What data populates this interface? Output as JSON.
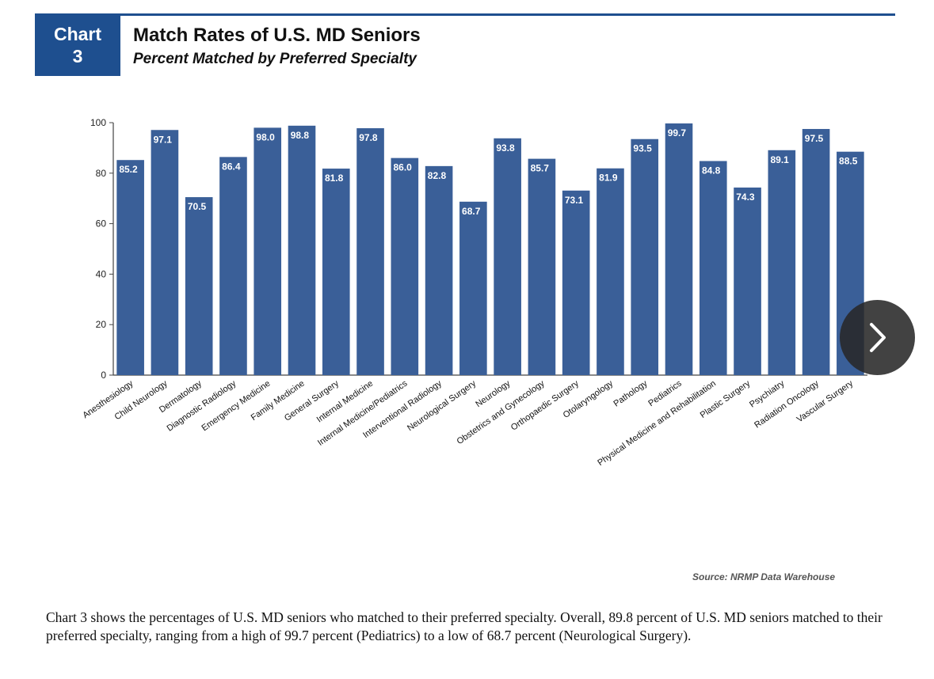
{
  "header": {
    "badge_line1": "Chart",
    "badge_line2": "3",
    "title": "Match Rates of U.S. MD Seniors",
    "subtitle": "Percent Matched by Preferred Specialty"
  },
  "chart_data": {
    "type": "bar",
    "categories": [
      "Anesthesiology",
      "Child Neurology",
      "Dermatology",
      "Diagnostic Radiology",
      "Emergency Medicine",
      "Family Medicine",
      "General Surgery",
      "Internal Medicine",
      "Internal Medicine/Pediatrics",
      "Interventional Radiology",
      "Neurological Surgery",
      "Neurology",
      "Obstetrics and Gynecology",
      "Orthopaedic Surgery",
      "Otolaryngology",
      "Pathology",
      "Pediatrics",
      "Physical Medicine and Rehabilitation",
      "Plastic Surgery",
      "Psychiatry",
      "Radiation Oncology",
      "Vascular Surgery"
    ],
    "values": [
      85.2,
      97.1,
      70.5,
      86.4,
      98.0,
      98.8,
      81.8,
      97.8,
      86.0,
      82.8,
      68.7,
      93.8,
      85.7,
      73.1,
      81.9,
      93.5,
      99.7,
      84.8,
      74.3,
      89.1,
      97.5,
      88.5
    ],
    "value_labels": [
      "85.2",
      "97.1",
      "70.5",
      "86.4",
      "98.0",
      "98.8",
      "81.8",
      "97.8",
      "86.0",
      "82.8",
      "68.7",
      "93.8",
      "85.7",
      "73.1",
      "81.9",
      "93.5",
      "99.7",
      "84.8",
      "74.3",
      "89.1",
      "97.5",
      "88.5"
    ],
    "ylim": [
      0,
      100
    ],
    "yticks": [
      0,
      20,
      40,
      60,
      80,
      100
    ],
    "title": "Match Rates of U.S. MD Seniors",
    "subtitle": "Percent Matched by Preferred Specialty",
    "xlabel": "",
    "ylabel": "",
    "bar_color": "#3a5f98",
    "grid": false
  },
  "source": "Source: NRMP Data Warehouse",
  "caption": "Chart 3 shows the percentages of U.S. MD seniors who matched to their preferred specialty. Overall, 89.8 percent of U.S. MD seniors matched to their preferred specialty, ranging from a high of 99.7 percent (Pediatrics) to a low of 68.7 percent (Neurological Surgery).",
  "navigation": {
    "next_icon": "chevron-right-icon"
  },
  "colors": {
    "brand": "#1e4f8f",
    "bar": "#3a5f98",
    "nav_button": "#282828"
  }
}
